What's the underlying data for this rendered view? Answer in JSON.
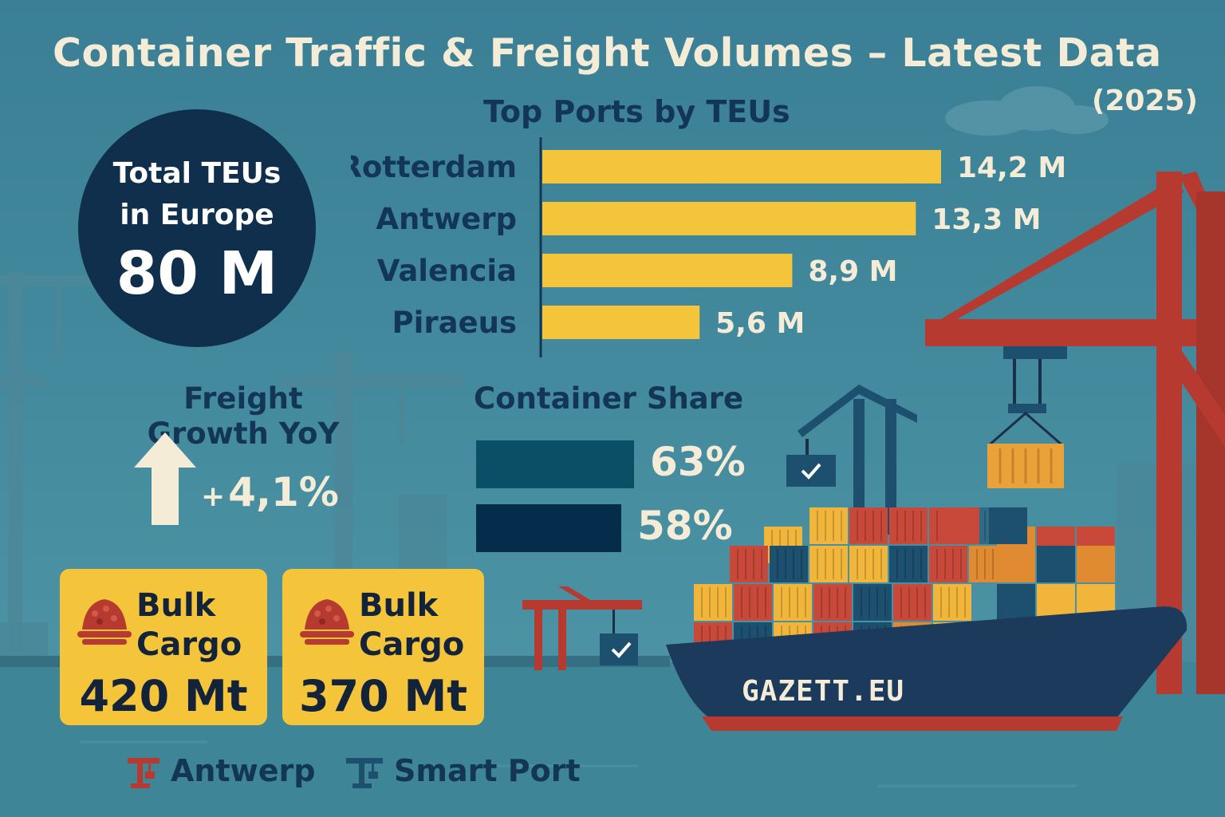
{
  "title": "Container Traffic & Freight Volumes – Latest Data",
  "year": "(2025)",
  "total": {
    "label": "Total TEUs in Europe",
    "value": "80 M"
  },
  "growth": {
    "title": "Freight Growth YoY",
    "sign": "+",
    "value": "4,1%"
  },
  "cargo_cards": [
    {
      "label_line1": "Bulk",
      "label_line2": "Cargo",
      "value": "420 Mt"
    },
    {
      "label_line1": "Bulk",
      "label_line2": "Cargo",
      "value": "370 Mt"
    }
  ],
  "footer": [
    {
      "label": "Antwerp",
      "icon": "crane-icon",
      "color": "#b63a2f"
    },
    {
      "label": "Smart Port",
      "icon": "crane-icon",
      "color": "#1d4f6e"
    }
  ],
  "ship_name": "GAZETT.EU",
  "colors": {
    "background": "#3f8599",
    "bar_yellow": "#f4c53b",
    "navy": "#0f2f4d",
    "teal_dark": "#0b4f67",
    "cream": "#f4ecd6",
    "crane_red": "#b63a2f"
  },
  "chart_data": [
    {
      "type": "bar",
      "orientation": "horizontal",
      "title": "Top Ports by TEUs",
      "categories": [
        "Rotterdam",
        "Antwerp",
        "Valencia",
        "Piraeus"
      ],
      "values": [
        14.2,
        13.3,
        8.9,
        5.6
      ],
      "value_labels": [
        "14,2 M",
        "13,3 M",
        "8,9 M",
        "5,6 M"
      ],
      "xlim": [
        0,
        16
      ],
      "color": "#f4c53b",
      "grid": false
    },
    {
      "type": "bar",
      "orientation": "horizontal",
      "title": "Container Share",
      "values": [
        63,
        58
      ],
      "value_labels": [
        "63%",
        "58%"
      ],
      "colors": [
        "#0b4f67",
        "#052c4b"
      ],
      "xlim": [
        0,
        100
      ],
      "grid": false
    }
  ]
}
